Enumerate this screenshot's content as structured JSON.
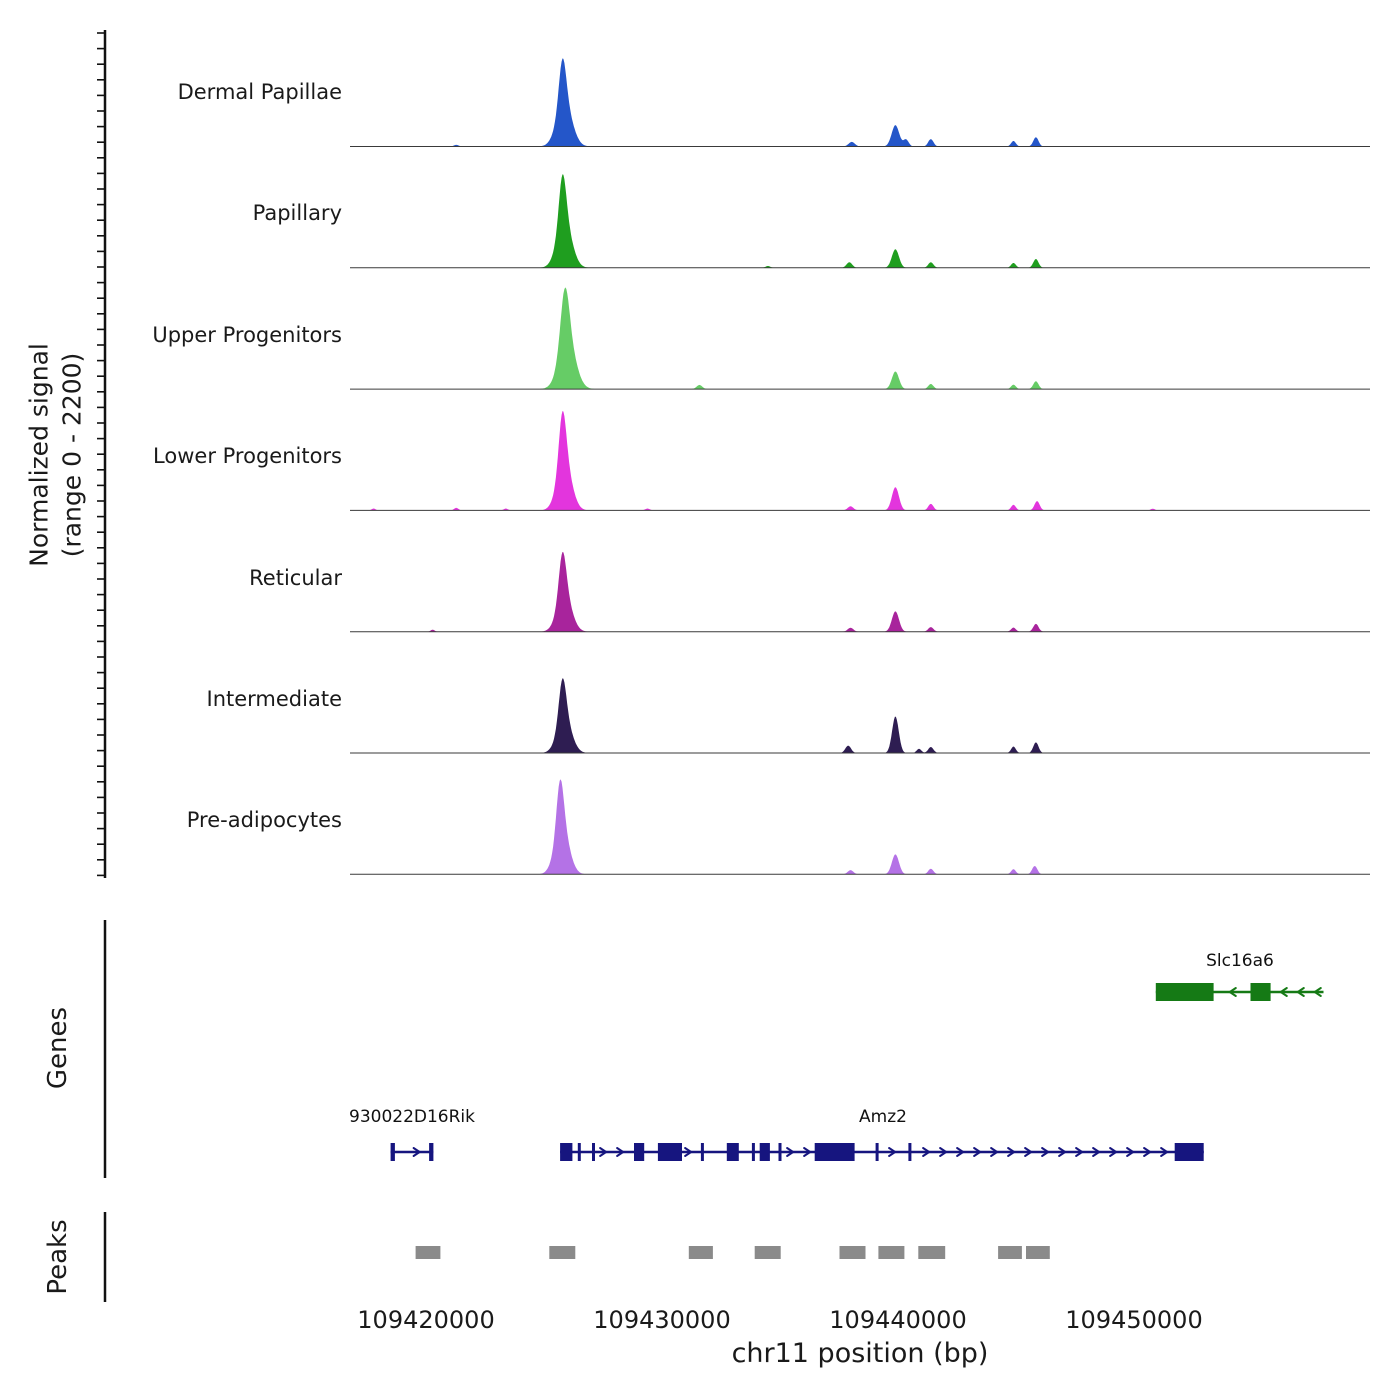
{
  "labels": {
    "y_axis_line1": "Normalized signal",
    "y_axis_line2": "(range 0 - 2200)",
    "genes_section": "Genes",
    "peaks_section": "Peaks",
    "x_axis_title": "chr11 position (bp)"
  },
  "chart_data": {
    "type": "area",
    "xlabel": "chr11 position (bp)",
    "ylabel": "Normalized signal (range 0 - 2200)",
    "x_range_bp": [
      109416800,
      109460000
    ],
    "x_ticks": [
      109420000,
      109430000,
      109440000,
      109450000
    ],
    "x_tick_labels": [
      "109420000",
      "109430000",
      "109440000",
      "109450000"
    ],
    "y_range": [
      0,
      2200
    ],
    "tracks": [
      {
        "name": "Dermal Papillae",
        "color": "#2456c9",
        "peaks": [
          [
            109425800,
            150,
            980
          ],
          [
            109425880,
            320,
            950
          ],
          [
            109421300,
            100,
            35
          ],
          [
            109438050,
            130,
            100
          ],
          [
            109439900,
            160,
            460
          ],
          [
            109440350,
            110,
            150
          ],
          [
            109441400,
            110,
            160
          ],
          [
            109444900,
            100,
            120
          ],
          [
            109445850,
            110,
            200
          ]
        ]
      },
      {
        "name": "Papillary",
        "color": "#1f9e1f",
        "peaks": [
          [
            109425800,
            150,
            1050
          ],
          [
            109425880,
            310,
            1000
          ],
          [
            109434500,
            100,
            40
          ],
          [
            109437950,
            120,
            120
          ],
          [
            109439900,
            150,
            400
          ],
          [
            109441400,
            110,
            120
          ],
          [
            109444900,
            100,
            105
          ],
          [
            109445850,
            110,
            190
          ]
        ]
      },
      {
        "name": "Upper Progenitors",
        "color": "#66cc66",
        "peaks": [
          [
            109425900,
            180,
            1150
          ],
          [
            109426000,
            340,
            1080
          ],
          [
            109431600,
            120,
            90
          ],
          [
            109439900,
            150,
            380
          ],
          [
            109441400,
            110,
            110
          ],
          [
            109444900,
            100,
            95
          ],
          [
            109445850,
            110,
            170
          ]
        ]
      },
      {
        "name": "Lower Progenitors",
        "color": "#e335dd",
        "peaks": [
          [
            109425800,
            150,
            1120
          ],
          [
            109425880,
            300,
            1060
          ],
          [
            109417800,
            80,
            40
          ],
          [
            109421300,
            90,
            55
          ],
          [
            109423400,
            90,
            40
          ],
          [
            109429400,
            100,
            40
          ],
          [
            109438000,
            120,
            90
          ],
          [
            109439900,
            150,
            500
          ],
          [
            109441400,
            110,
            140
          ],
          [
            109444900,
            100,
            120
          ],
          [
            109445900,
            110,
            200
          ],
          [
            109450800,
            90,
            35
          ]
        ]
      },
      {
        "name": "Reticular",
        "color": "#a8249c",
        "peaks": [
          [
            109425800,
            150,
            920
          ],
          [
            109425880,
            300,
            830
          ],
          [
            109420300,
            80,
            45
          ],
          [
            109438000,
            120,
            85
          ],
          [
            109439900,
            150,
            440
          ],
          [
            109441400,
            110,
            100
          ],
          [
            109444900,
            100,
            90
          ],
          [
            109445850,
            110,
            170
          ]
        ]
      },
      {
        "name": "Intermediate",
        "color": "#2e1d52",
        "peaks": [
          [
            109425800,
            150,
            880
          ],
          [
            109425880,
            300,
            760
          ],
          [
            109437900,
            120,
            160
          ],
          [
            109439900,
            140,
            790
          ],
          [
            109440900,
            100,
            90
          ],
          [
            109441400,
            110,
            130
          ],
          [
            109444900,
            100,
            140
          ],
          [
            109445850,
            110,
            230
          ]
        ]
      },
      {
        "name": "Pre-adipocytes",
        "color": "#b472e6",
        "peaks": [
          [
            109425700,
            150,
            1080
          ],
          [
            109425780,
            300,
            1000
          ],
          [
            109438000,
            120,
            90
          ],
          [
            109439900,
            150,
            430
          ],
          [
            109441400,
            110,
            120
          ],
          [
            109444900,
            100,
            110
          ],
          [
            109445800,
            110,
            180
          ]
        ]
      }
    ],
    "genes": [
      {
        "name": "Slc16a6",
        "color": "#157a15",
        "strand": "-",
        "row": 0,
        "start": 109450930,
        "end": 109458030,
        "exons": [
          [
            109450930,
            109453380
          ],
          [
            109454940,
            109455790
          ]
        ]
      },
      {
        "name": "930022D16Rik",
        "color": "#16157f",
        "strand": "+",
        "row": 1,
        "start": 109418520,
        "end": 109420330,
        "exons": [
          [
            109418520,
            109418700
          ],
          [
            109420150,
            109420330
          ]
        ]
      },
      {
        "name": "Amz2",
        "color": "#16157f",
        "strand": "+",
        "row": 1,
        "start": 109425700,
        "end": 109452960,
        "exons": [
          [
            109425700,
            109426220
          ],
          [
            109426450,
            109426530
          ],
          [
            109427050,
            109427130
          ],
          [
            109428830,
            109429260
          ],
          [
            109429840,
            109430860
          ],
          [
            109431660,
            109431740
          ],
          [
            109432760,
            109433270
          ],
          [
            109433820,
            109433900
          ],
          [
            109434150,
            109434580
          ],
          [
            109434950,
            109435030
          ],
          [
            109436480,
            109438170
          ],
          [
            109439060,
            109439140
          ],
          [
            109440450,
            109440530
          ],
          [
            109451730,
            109452960
          ]
        ]
      }
    ],
    "peak_calls_bp": [
      [
        109419580,
        109420630
      ],
      [
        109425240,
        109426340
      ],
      [
        109431150,
        109432170
      ],
      [
        109433940,
        109435040
      ],
      [
        109437530,
        109438630
      ],
      [
        109439180,
        109440280
      ],
      [
        109440870,
        109442010
      ],
      [
        109444250,
        109445260
      ],
      [
        109445430,
        109446440
      ]
    ],
    "colors": {
      "gene_forward": "#16157f",
      "gene_reverse": "#157a15",
      "peak_call": "#8a8a8a",
      "baseline": "#3a3a3a",
      "axis": "#111111"
    }
  }
}
